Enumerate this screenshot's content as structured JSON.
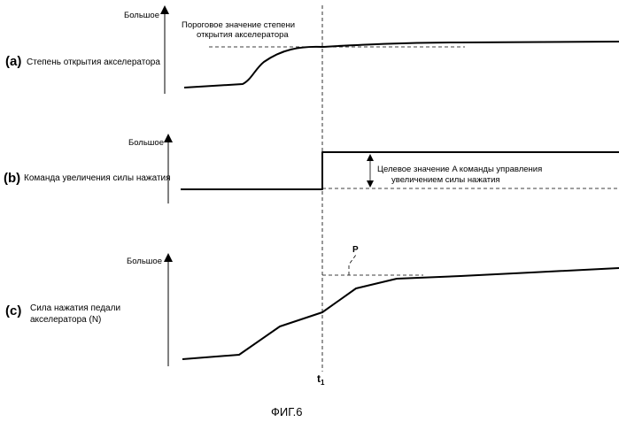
{
  "caption": "ФИГ.6",
  "time_marker": {
    "letter": "t",
    "subscript": "1"
  },
  "panels": {
    "a": {
      "tag": "(a)",
      "label": "Степень открытия акселератора",
      "y_max_label": "Большое",
      "threshold_label_line1": "Пороговое значение степени",
      "threshold_label_line2": "открытия акселератора"
    },
    "b": {
      "tag": "(b)",
      "label": "Команда увеличения силы нажатия",
      "y_max_label": "Большое",
      "target_label_line1": "Целевое значение A команды управления",
      "target_label_line2": "увеличением силы нажатия"
    },
    "c": {
      "tag": "(c)",
      "label_line1": "Сила нажатия педали",
      "label_line2": "акселератора (N)",
      "y_max_label": "Большое",
      "marker_label": "P"
    }
  }
}
